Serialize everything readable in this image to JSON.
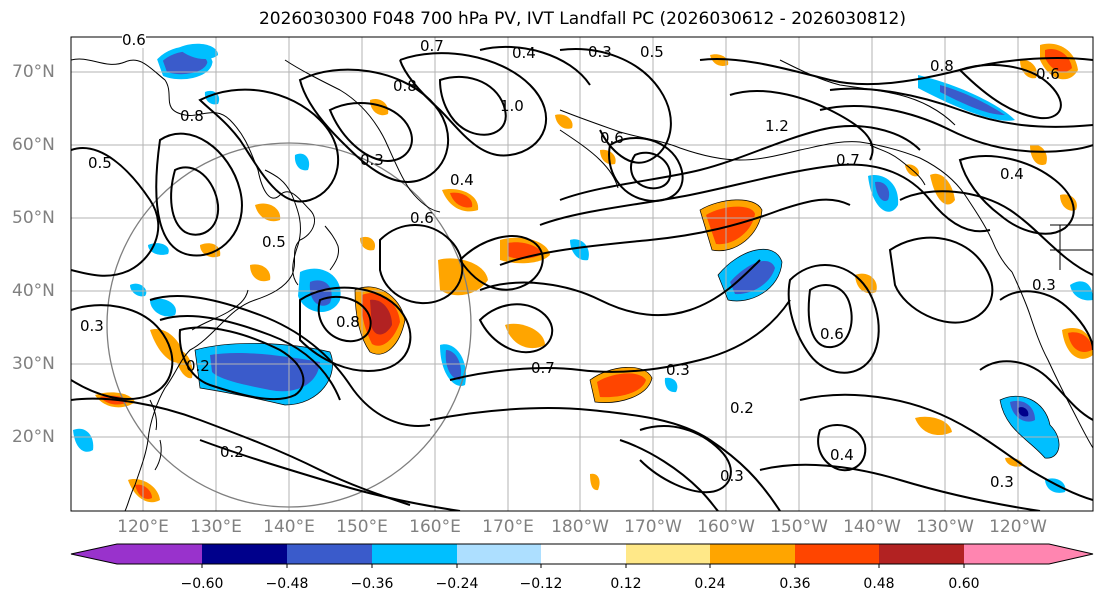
{
  "title": "2026030300 F048 700 hPa PV, IVT Landfall PC (2026030612 - 2026030812)",
  "latitude_labels": [
    "70°N",
    "60°N",
    "50°N",
    "40°N",
    "30°N",
    "20°N"
  ],
  "longitude_labels": [
    "120°E",
    "130°E",
    "140°E",
    "150°E",
    "160°E",
    "170°E",
    "180°W",
    "170°W",
    "160°W",
    "150°W",
    "140°W",
    "130°W",
    "120°W"
  ],
  "contour_labels": [
    "0.6",
    "0.7",
    "0.4",
    "0.3",
    "0.5",
    "0.8",
    "1.0",
    "0.6",
    "0.8",
    "0.5",
    "1.2",
    "0.7",
    "0.4",
    "0.6",
    "0.3",
    "0.4",
    "0.7",
    "0.8",
    "0.6",
    "0.3",
    "0.2",
    "0.4",
    "0.3",
    "0.3",
    "0.2",
    "0.8",
    "0.6",
    "0.5",
    "0.3",
    "0.2",
    "0.3"
  ],
  "colorbar": {
    "ticks": [
      "−0.60",
      "−0.48",
      "−0.36",
      "−0.24",
      "−0.12",
      "0.12",
      "0.24",
      "0.36",
      "0.48",
      "0.60"
    ],
    "colors": [
      "#9932CC",
      "#00008B",
      "#3A5BCB",
      "#00BFFF",
      "#ADDFFF",
      "#FFFFFF",
      "#FFE888",
      "#FFA500",
      "#FF4500",
      "#B22222",
      "#FF85B0"
    ]
  }
}
